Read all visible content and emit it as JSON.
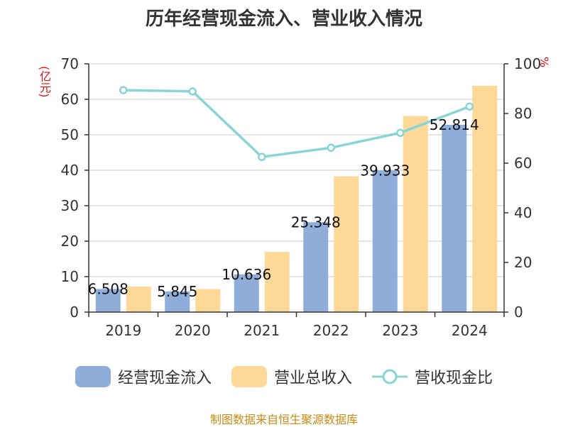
{
  "title": "历年经营现金流入、营业收入情况",
  "left_axis_unit": "(亿元)",
  "right_axis_unit": "%",
  "source": "制图数据来自恒生聚源数据库",
  "colors": {
    "cash_inflow": "#8eadd9",
    "revenue": "#fdd896",
    "ratio_line": "#88d4d8"
  },
  "chart_data": {
    "type": "bar",
    "categories": [
      "2019",
      "2020",
      "2021",
      "2022",
      "2023",
      "2024"
    ],
    "series": [
      {
        "name": "经营现金流入",
        "axis": "left",
        "type": "bar",
        "values": [
          6.508,
          5.845,
          10.636,
          25.348,
          39.933,
          52.814
        ],
        "labels": [
          "6.508",
          "5.845",
          "10.636",
          "25.348",
          "39.933",
          "52.814"
        ]
      },
      {
        "name": "营业总收入",
        "axis": "left",
        "type": "bar",
        "values": [
          7.2,
          6.5,
          17.0,
          38.3,
          55.3,
          63.8
        ]
      },
      {
        "name": "营收现金比",
        "axis": "right",
        "type": "line",
        "values": [
          89.4,
          88.9,
          62.5,
          66.2,
          72.2,
          82.8
        ]
      }
    ],
    "ylim": [
      0,
      70
    ],
    "yticks": [
      0,
      10,
      20,
      30,
      40,
      50,
      60,
      70
    ],
    "y2lim": [
      0,
      100
    ],
    "y2ticks": [
      0,
      20,
      40,
      60,
      80,
      100
    ],
    "grid": true,
    "legend_position": "bottom"
  }
}
